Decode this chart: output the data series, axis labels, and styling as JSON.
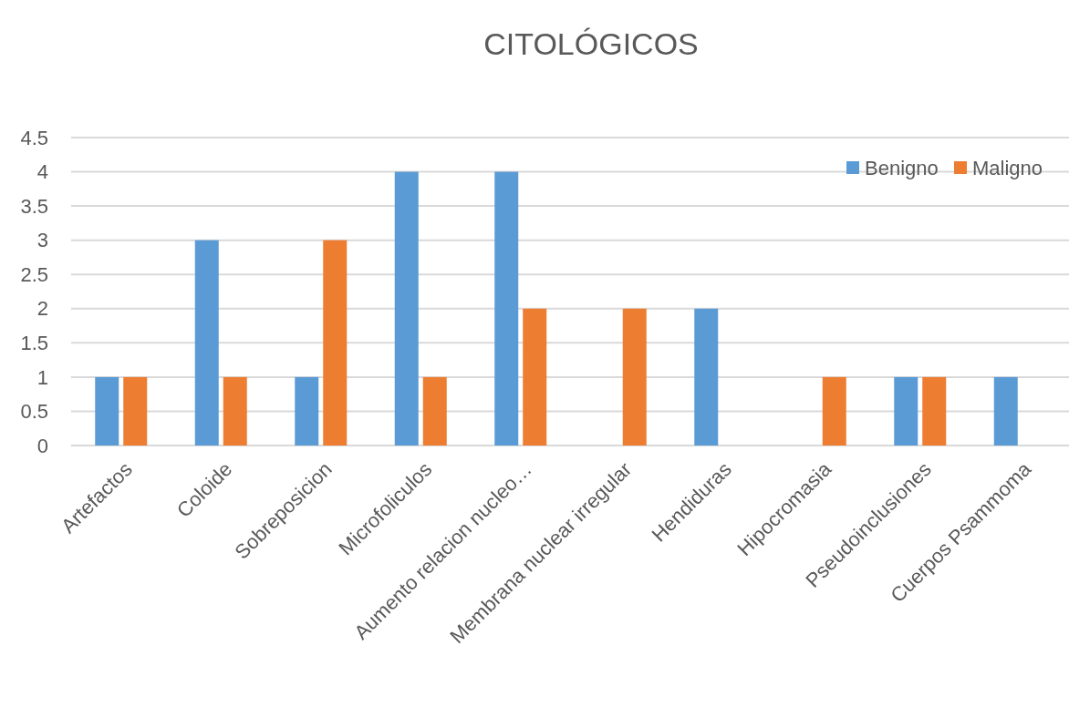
{
  "chart_data": {
    "type": "bar",
    "title": "CITOLÓGICOS",
    "categories": [
      "Artefactos",
      "Coloide",
      "Sobreposicion",
      "Microfoliculos",
      "Aumento relacion nucleo…",
      "Membrana nuclear irregular",
      "Hendiduras",
      "Hipocromasia",
      "Pseudoinclusiones",
      "Cuerpos Psammoma"
    ],
    "series": [
      {
        "name": "Benigno",
        "color": "#5b9bd5",
        "values": [
          1,
          3,
          1,
          4,
          4,
          0,
          2,
          0,
          1,
          1
        ]
      },
      {
        "name": "Maligno",
        "color": "#ed7d31",
        "values": [
          1,
          1,
          3,
          1,
          2,
          2,
          0,
          1,
          1,
          0
        ]
      }
    ],
    "ylim": [
      0,
      4.5
    ],
    "yticks": [
      0,
      0.5,
      1,
      1.5,
      2,
      2.5,
      3,
      3.5,
      4,
      4.5
    ],
    "grid": "y",
    "legend": "top right"
  }
}
